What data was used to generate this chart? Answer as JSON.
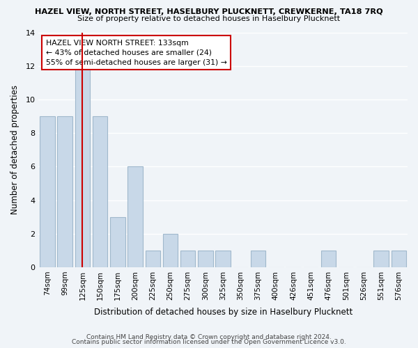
{
  "title": "HAZEL VIEW, NORTH STREET, HASELBURY PLUCKNETT, CREWKERNE, TA18 7RQ",
  "subtitle": "Size of property relative to detached houses in Haselbury Plucknett",
  "xlabel": "Distribution of detached houses by size in Haselbury Plucknett",
  "ylabel": "Number of detached properties",
  "footer_line1": "Contains HM Land Registry data © Crown copyright and database right 2024.",
  "footer_line2": "Contains public sector information licensed under the Open Government Licence v3.0.",
  "bar_labels": [
    "74sqm",
    "99sqm",
    "125sqm",
    "150sqm",
    "175sqm",
    "200sqm",
    "225sqm",
    "250sqm",
    "275sqm",
    "300sqm",
    "325sqm",
    "350sqm",
    "375sqm",
    "400sqm",
    "426sqm",
    "451sqm",
    "476sqm",
    "501sqm",
    "526sqm",
    "551sqm",
    "576sqm"
  ],
  "bar_values": [
    9,
    9,
    12,
    9,
    3,
    6,
    1,
    2,
    1,
    1,
    1,
    0,
    1,
    0,
    0,
    0,
    1,
    0,
    0,
    1,
    1
  ],
  "bar_color": "#c8d8e8",
  "bar_edge_color": "#a0b8cc",
  "reference_line_x_label": "125sqm",
  "reference_line_color": "#cc0000",
  "annotation_title": "HAZEL VIEW NORTH STREET: 133sqm",
  "annotation_line1": "← 43% of detached houses are smaller (24)",
  "annotation_line2": "55% of semi-detached houses are larger (31) →",
  "annotation_box_color": "#ffffff",
  "annotation_box_edge_color": "#cc0000",
  "ylim": [
    0,
    14
  ],
  "yticks": [
    0,
    2,
    4,
    6,
    8,
    10,
    12,
    14
  ],
  "bg_color": "#f0f4f8",
  "grid_color": "#ffffff"
}
